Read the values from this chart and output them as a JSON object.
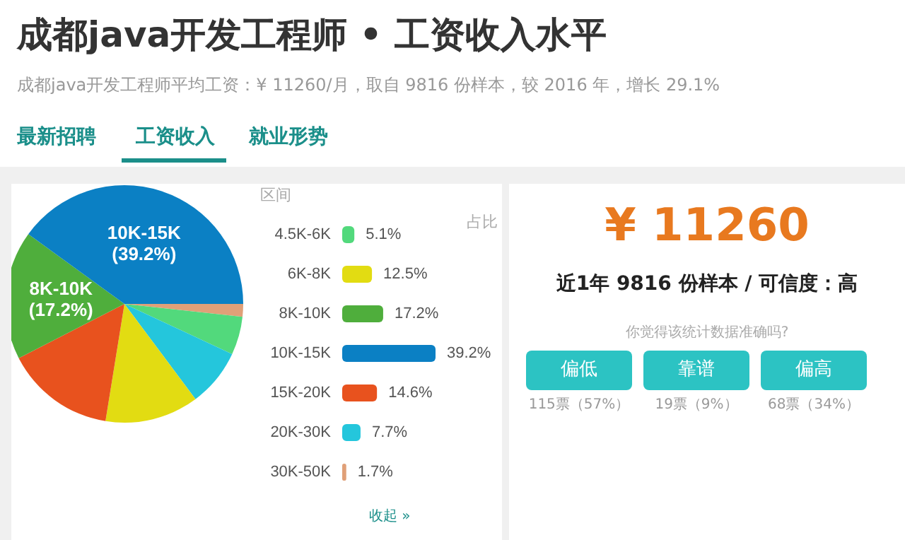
{
  "chart_data": [
    {
      "type": "pie",
      "title": "成都java开发工程师 • 工资收入水平",
      "subtitle": "成都java开发工程师平均工资：¥ 11260/月，取自 9816 份样本，较 2016 年，增长 29.1%",
      "annotations": [
        "最新招聘",
        "工资收入",
        "就业形势"
      ],
      "categories": [
        null,
        null,
        null,
        null,
        null,
        "8K-10K",
        "10K-15K"
      ],
      "values": [
        1.7,
        5.1,
        7.7,
        12.5,
        14.6,
        17.2,
        39.2
      ],
      "value_labels": [
        null,
        null,
        null,
        null,
        null,
        "(17.2%)",
        "(39.2%)"
      ],
      "colors": [
        "#e0a078",
        "#52d97c",
        "#24c6dc",
        "#e2dc12",
        "#e8521e",
        "#4fae3c",
        "#0b80c4"
      ]
    },
    {
      "type": "bar",
      "orientation": "horizontal",
      "ylabel": "区间",
      "xlabel": "占比",
      "annotations": [
        "收起 »"
      ],
      "categories": [
        "4.5K-6K",
        "6K-8K",
        "8K-10K",
        "10K-15K",
        "15K-20K",
        "20K-30K",
        "30K-50K"
      ],
      "values": [
        5.1,
        12.5,
        17.2,
        39.2,
        14.6,
        7.7,
        1.7
      ],
      "value_labels": [
        "5.1%",
        "12.5%",
        "17.2%",
        "39.2%",
        "14.6%",
        "7.7%",
        "1.7%"
      ],
      "colors": [
        "#52d97c",
        "#e2dc12",
        "#4fae3c",
        "#0b80c4",
        "#e8521e",
        "#24c6dc",
        "#e0a078"
      ],
      "tick_labels": "y"
    },
    {
      "type": "other",
      "annotations": [
        "¥ 11260",
        "近1年 9816 份样本 / 可信度：高",
        "你觉得该统计数据准确吗?",
        "偏低",
        "靠谱",
        "偏高",
        "115票（57%）",
        "19票（9%）",
        "68票（34%）"
      ]
    }
  ]
}
